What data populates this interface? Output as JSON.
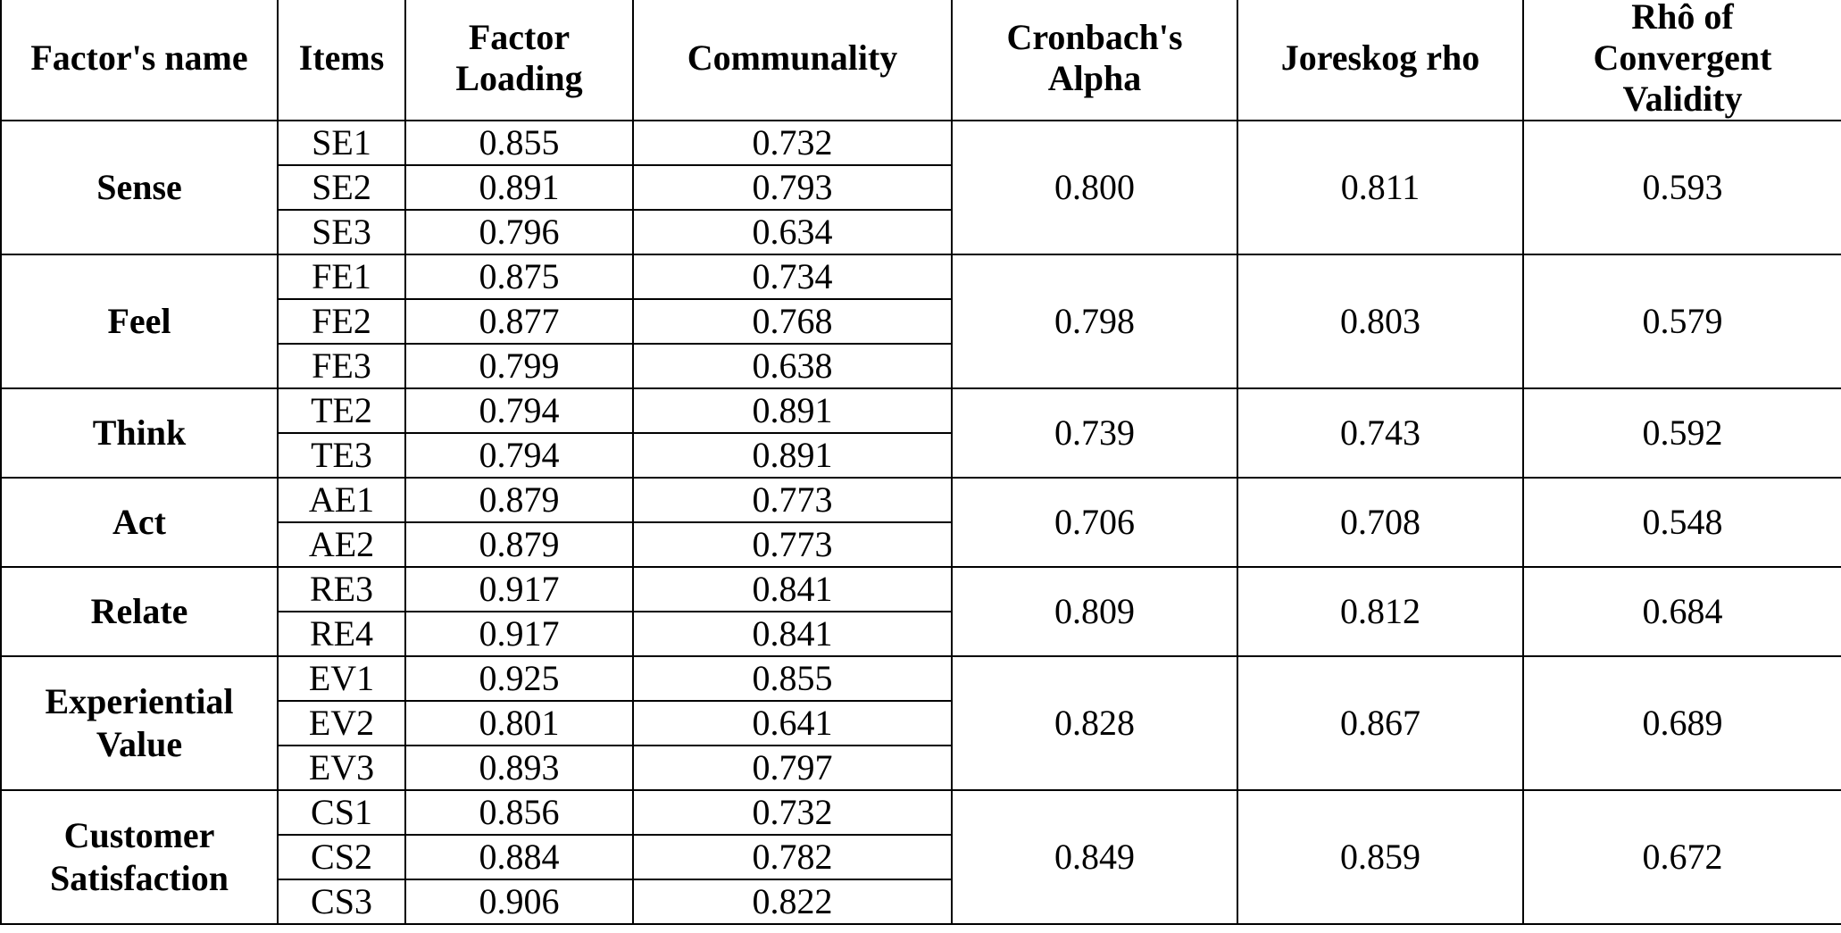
{
  "table": {
    "headers": [
      "Factor's name",
      "Items",
      "Factor\nLoading",
      "Communality",
      "Cronbach's\nAlpha",
      "Joreskog rho",
      "Rhô of\nConvergent\nValidity"
    ],
    "groups": [
      {
        "factor": "Sense",
        "alpha": "0.800",
        "rho": "0.811",
        "convergent": "0.593",
        "items": [
          {
            "item": "SE1",
            "loading": "0.855",
            "communality": "0.732"
          },
          {
            "item": "SE2",
            "loading": "0.891",
            "communality": "0.793"
          },
          {
            "item": "SE3",
            "loading": "0.796",
            "communality": "0.634"
          }
        ]
      },
      {
        "factor": "Feel",
        "alpha": "0.798",
        "rho": "0.803",
        "convergent": "0.579",
        "items": [
          {
            "item": "FE1",
            "loading": "0.875",
            "communality": "0.734"
          },
          {
            "item": "FE2",
            "loading": "0.877",
            "communality": "0.768"
          },
          {
            "item": "FE3",
            "loading": "0.799",
            "communality": "0.638"
          }
        ]
      },
      {
        "factor": "Think",
        "alpha": "0.739",
        "rho": "0.743",
        "convergent": "0.592",
        "items": [
          {
            "item": "TE2",
            "loading": "0.794",
            "communality": "0.891"
          },
          {
            "item": "TE3",
            "loading": "0.794",
            "communality": "0.891"
          }
        ]
      },
      {
        "factor": "Act",
        "alpha": "0.706",
        "rho": "0.708",
        "convergent": "0.548",
        "items": [
          {
            "item": "AE1",
            "loading": "0.879",
            "communality": "0.773"
          },
          {
            "item": "AE2",
            "loading": "0.879",
            "communality": "0.773"
          }
        ]
      },
      {
        "factor": "Relate",
        "alpha": "0.809",
        "rho": "0.812",
        "convergent": "0.684",
        "items": [
          {
            "item": "RE3",
            "loading": "0.917",
            "communality": "0.841"
          },
          {
            "item": "RE4",
            "loading": "0.917",
            "communality": "0.841"
          }
        ]
      },
      {
        "factor": "Experiential\nValue",
        "alpha": "0.828",
        "rho": "0.867",
        "convergent": "0.689",
        "items": [
          {
            "item": "EV1",
            "loading": "0.925",
            "communality": "0.855"
          },
          {
            "item": "EV2",
            "loading": "0.801",
            "communality": "0.641"
          },
          {
            "item": "EV3",
            "loading": "0.893",
            "communality": "0.797"
          }
        ]
      },
      {
        "factor": "Customer\nSatisfaction",
        "alpha": "0.849",
        "rho": "0.859",
        "convergent": "0.672",
        "items": [
          {
            "item": "CS1",
            "loading": "0.856",
            "communality": "0.732"
          },
          {
            "item": "CS2",
            "loading": "0.884",
            "communality": "0.782"
          },
          {
            "item": "CS3",
            "loading": "0.906",
            "communality": "0.822"
          }
        ]
      }
    ]
  }
}
